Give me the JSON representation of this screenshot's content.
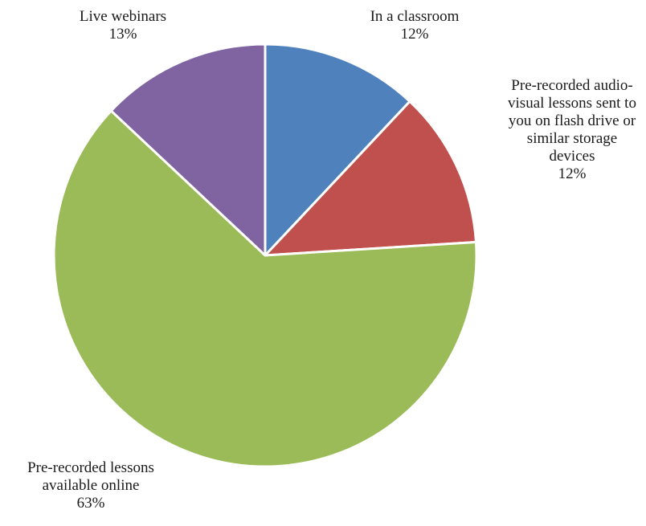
{
  "chart_data": {
    "type": "pie",
    "title": "",
    "slices": [
      {
        "label_lines": [
          "In a classroom"
        ],
        "value": 12,
        "value_label": "12%",
        "color": "#4f81bd"
      },
      {
        "label_lines": [
          "Pre-recorded audio-",
          "visual lessons sent to",
          "you on flash drive or",
          "similar storage",
          "devices"
        ],
        "value": 12,
        "value_label": "12%",
        "color": "#c0504d"
      },
      {
        "label_lines": [
          "Pre-recorded lessons",
          "available online"
        ],
        "value": 63,
        "value_label": "63%",
        "color": "#9bbb59"
      },
      {
        "label_lines": [
          "Live webinars"
        ],
        "value": 13,
        "value_label": "13%",
        "color": "#8064a2"
      }
    ],
    "start_angle_deg": 0,
    "direction": "clockwise",
    "legend": "none"
  }
}
